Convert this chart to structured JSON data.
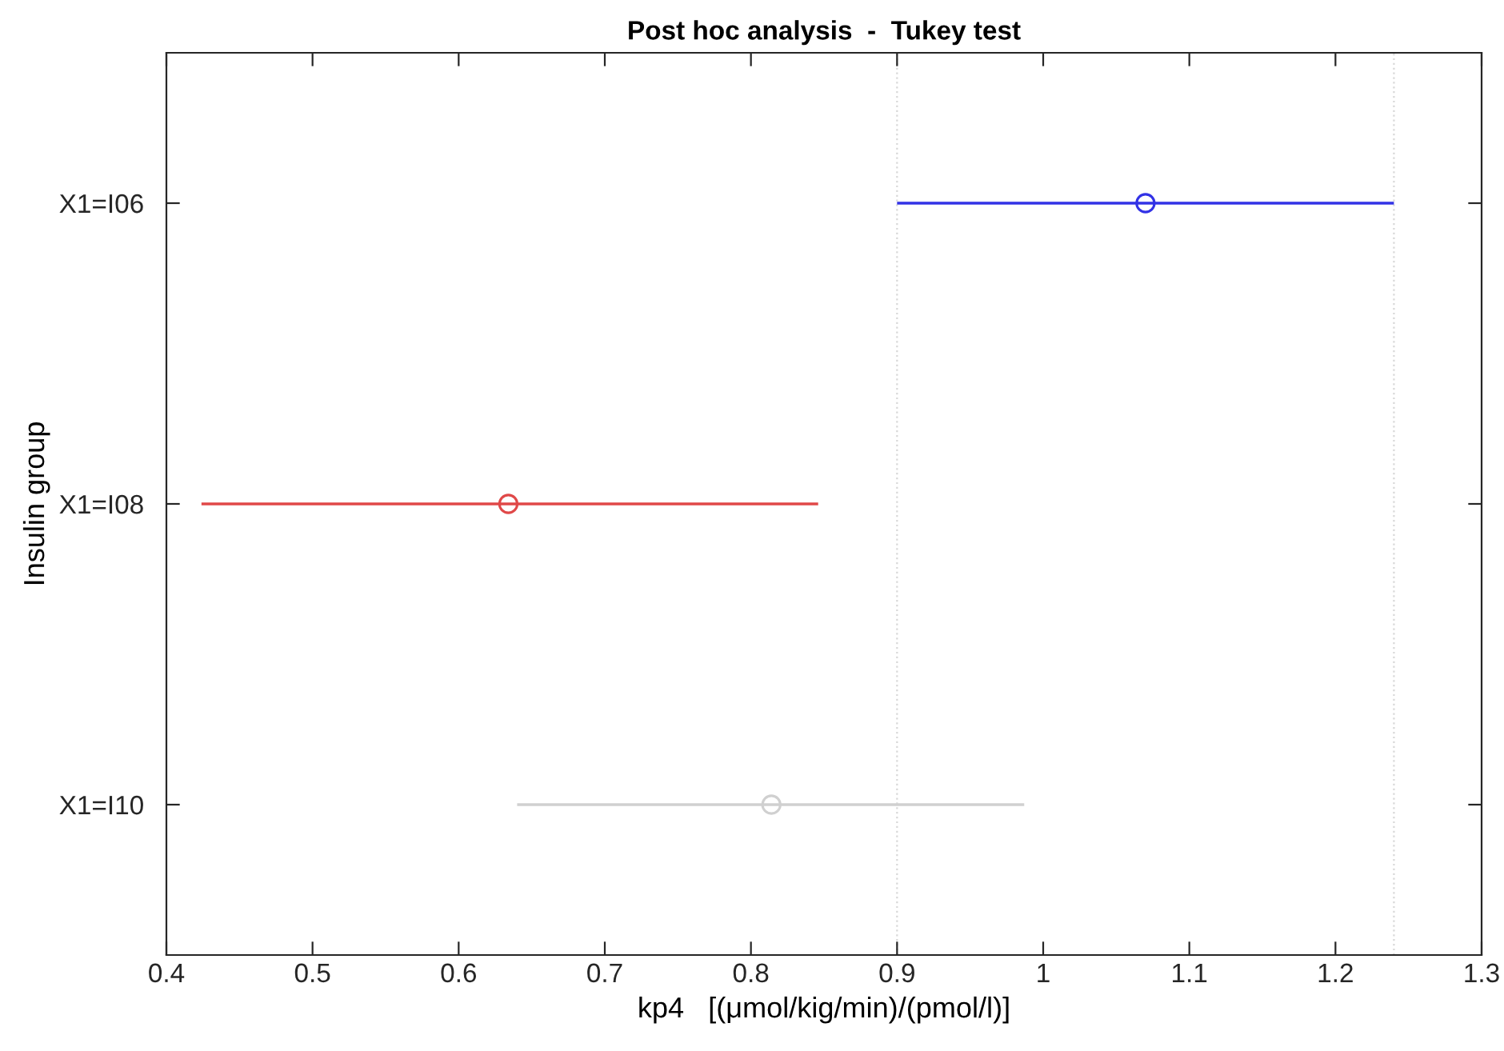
{
  "chart_data": {
    "type": "scatter",
    "orientation": "horizontal",
    "title": "Post hoc analysis  -  Tukey test",
    "xlabel": "kp4   [(μmol/kig/min)/(pmol/l)]",
    "ylabel": "Insulin group",
    "categories": [
      "X1=I06",
      "X1=I08",
      "X1=I10"
    ],
    "values": [
      1.07,
      0.634,
      0.814
    ],
    "errors": [
      [
        0.9,
        1.24
      ],
      [
        0.424,
        0.846
      ],
      [
        0.64,
        0.987
      ]
    ],
    "colors": [
      "#3232e6",
      "#e04848",
      "#d0d0d0"
    ],
    "marker": "circle",
    "grid": false,
    "legend": false,
    "xlim": [
      0.4,
      1.3
    ],
    "xticks": [
      0.4,
      0.5,
      0.6,
      0.7,
      0.8,
      0.9,
      1,
      1.1,
      1.2,
      1.3
    ],
    "ref_lines": [
      {
        "axis": "x",
        "value": 0.9,
        "color": "#d8d8d8",
        "line_style": "dotted"
      },
      {
        "axis": "x",
        "value": 1.24,
        "color": "#d8d8d8",
        "line_style": "dotted"
      }
    ]
  }
}
